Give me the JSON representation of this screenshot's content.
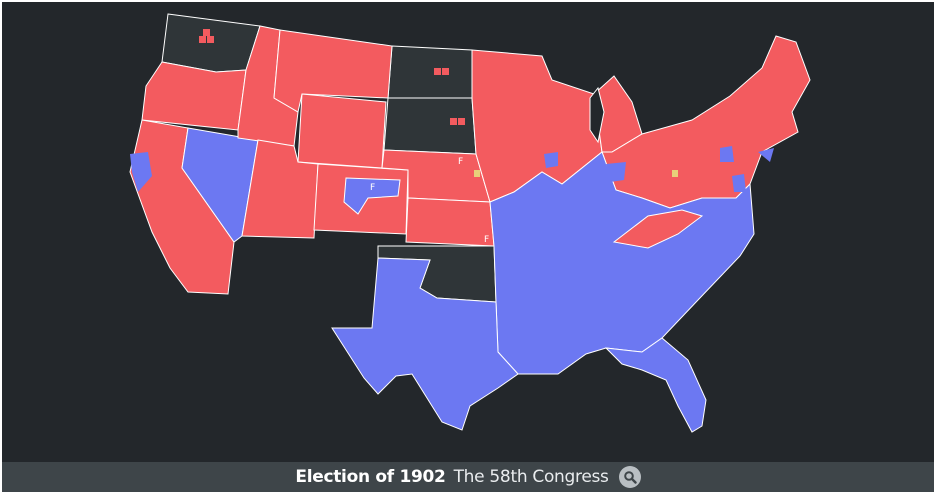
{
  "footer": {
    "title": "Election of 1902",
    "subtitle": "The 58th Congress",
    "search_icon": "magnifier-icon"
  },
  "legend_colors": {
    "republican": "#f35b5f",
    "democratic": "#6c78f2",
    "not_a_state": "#2f3538",
    "other": "#e8d07a"
  },
  "map": {
    "marker_letter": "F",
    "regions": [
      {
        "id": "washington",
        "party": "not_a_state"
      },
      {
        "id": "oregon",
        "party": "republican"
      },
      {
        "id": "california",
        "party": "republican"
      },
      {
        "id": "nevada",
        "party": "democratic"
      },
      {
        "id": "idaho",
        "party": "republican"
      },
      {
        "id": "montana",
        "party": "republican"
      },
      {
        "id": "wyoming",
        "party": "republican"
      },
      {
        "id": "utah",
        "party": "republican"
      },
      {
        "id": "colorado",
        "party": "republican"
      },
      {
        "id": "north-dakota",
        "party": "not_a_state"
      },
      {
        "id": "south-dakota",
        "party": "not_a_state"
      },
      {
        "id": "nebraska",
        "party": "republican"
      },
      {
        "id": "kansas",
        "party": "republican"
      },
      {
        "id": "oklahoma-territory",
        "party": "not_a_state"
      },
      {
        "id": "texas",
        "party": "democratic"
      },
      {
        "id": "midwest",
        "party": "republican"
      },
      {
        "id": "great-lakes",
        "party": "republican"
      },
      {
        "id": "northeast",
        "party": "republican"
      },
      {
        "id": "south",
        "party": "democratic"
      },
      {
        "id": "florida",
        "party": "democratic"
      }
    ]
  }
}
